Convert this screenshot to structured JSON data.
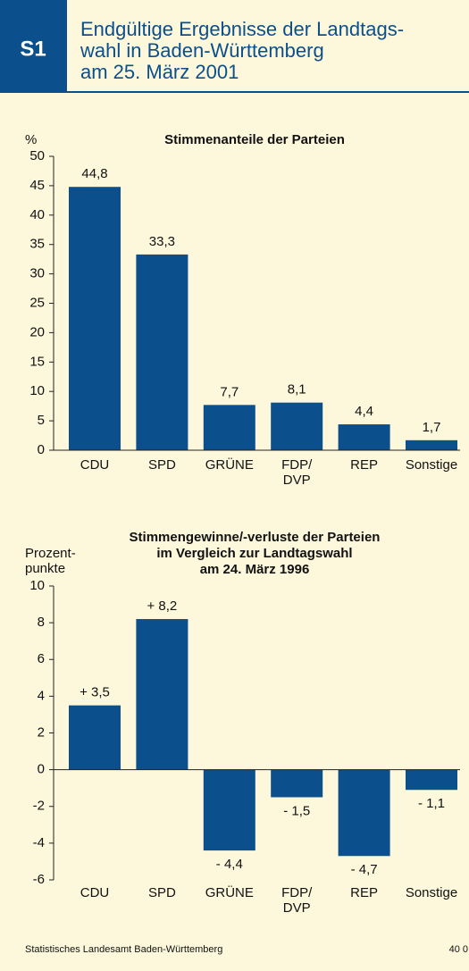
{
  "header": {
    "badge": "S1",
    "title": "Endgültige Ergebnisse der Landtags-\nwahl in Baden-Württemberg\nam 25. März 2001"
  },
  "chart_data": [
    {
      "type": "bar",
      "title": "Stimmenanteile der Parteien",
      "y_label": "%",
      "categories": [
        "CDU",
        "SPD",
        "GRÜNE",
        "FDP/\nDVP",
        "REP",
        "Sonstige"
      ],
      "values": [
        44.8,
        33.3,
        7.7,
        8.1,
        4.4,
        1.7
      ],
      "value_labels": [
        "44,8",
        "33,3",
        "7,7",
        "8,1",
        "4,4",
        "1,7"
      ],
      "color": "#0b4f8c",
      "ylim": [
        0,
        50
      ],
      "yticks": [
        0,
        5,
        10,
        15,
        20,
        25,
        30,
        35,
        40,
        45,
        50
      ],
      "grid": false
    },
    {
      "type": "bar",
      "title": "Stimmengewinne/-verluste der Parteien\nim Vergleich zur Landtagswahl\nam 24. März 1996",
      "y_label": "Prozent-\npunkte",
      "categories": [
        "CDU",
        "SPD",
        "GRÜNE",
        "FDP/\nDVP",
        "REP",
        "Sonstige"
      ],
      "values": [
        3.5,
        8.2,
        -4.4,
        -1.5,
        -4.7,
        -1.1
      ],
      "value_labels": [
        "+ 3,5",
        "+ 8,2",
        "- 4,4",
        "- 1,5",
        "- 4,7",
        "- 1,1"
      ],
      "color": "#0b4f8c",
      "ylim": [
        -6,
        10
      ],
      "yticks": [
        -6,
        -4,
        -2,
        0,
        2,
        4,
        6,
        8,
        10
      ],
      "grid": false
    }
  ],
  "footer": {
    "source": "Statistisches Landesamt Baden-Württemberg",
    "code": "40 0"
  }
}
